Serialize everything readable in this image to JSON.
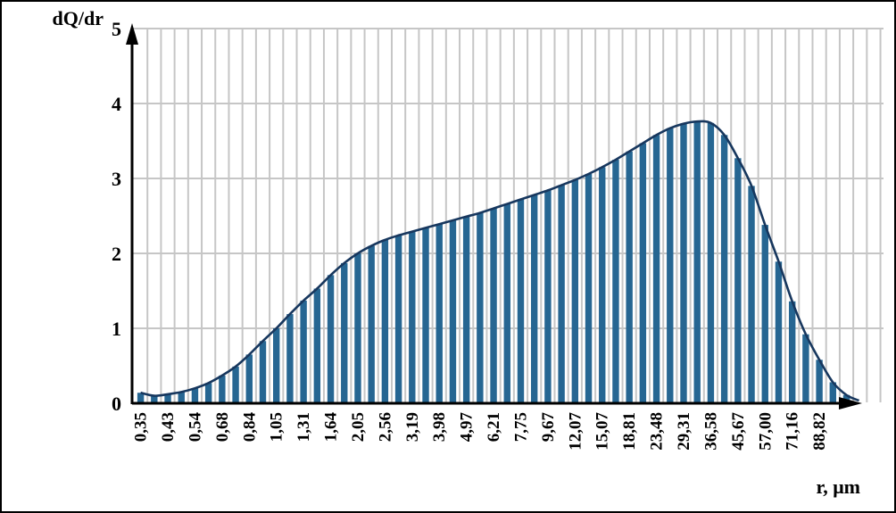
{
  "chart_data": {
    "type": "bar",
    "title": "",
    "ylabel": "dQ/dr",
    "xlabel": "r, μm",
    "ylim": [
      0,
      5
    ],
    "yticks": [
      0,
      1,
      2,
      3,
      4,
      5
    ],
    "grid": true,
    "legend": "none",
    "x_scale": "log-spaced particle radius channels, label under every 2nd bar",
    "label_every": 2,
    "x_tick_labels": [
      "0,35",
      "0,43",
      "0,54",
      "0,68",
      "0,84",
      "1,05",
      "1,31",
      "1,64",
      "2,05",
      "2,56",
      "3,19",
      "3,98",
      "4,97",
      "6,21",
      "7,75",
      "9,67",
      "12,07",
      "15,07",
      "18,81",
      "23,48",
      "29,31",
      "36,58",
      "45,67",
      "57,00",
      "71,16",
      "88,82"
    ],
    "categories_r_um": [
      0.35,
      0.43,
      0.54,
      0.68,
      0.84,
      1.05,
      1.31,
      1.64,
      2.05,
      2.56,
      3.19,
      3.98,
      4.97,
      6.21,
      7.75,
      9.67,
      12.07,
      15.07,
      18.81,
      23.48,
      29.31,
      36.58,
      45.67,
      57.0,
      71.16,
      88.82
    ],
    "values": [
      0.14,
      0.1,
      0.12,
      0.15,
      0.2,
      0.27,
      0.37,
      0.49,
      0.65,
      0.83,
      1.0,
      1.19,
      1.37,
      1.53,
      1.71,
      1.87,
      2.0,
      2.1,
      2.18,
      2.24,
      2.29,
      2.34,
      2.39,
      2.44,
      2.49,
      2.54,
      2.6,
      2.66,
      2.72,
      2.78,
      2.84,
      2.91,
      2.98,
      3.06,
      3.15,
      3.25,
      3.36,
      3.47,
      3.58,
      3.67,
      3.73,
      3.76,
      3.74,
      3.58,
      3.27,
      2.9,
      2.38,
      1.89,
      1.36,
      0.92,
      0.58,
      0.28,
      0.11
    ],
    "overlay_line": "smoothed distribution curve drawn through the bar tops, ending near zero at the axis arrow"
  },
  "style": {
    "bar_color": "#266692",
    "curve_color": "#17375e",
    "grid_color": "#c6c6c6",
    "axis_color": "#000000",
    "background": "#ffffff"
  }
}
